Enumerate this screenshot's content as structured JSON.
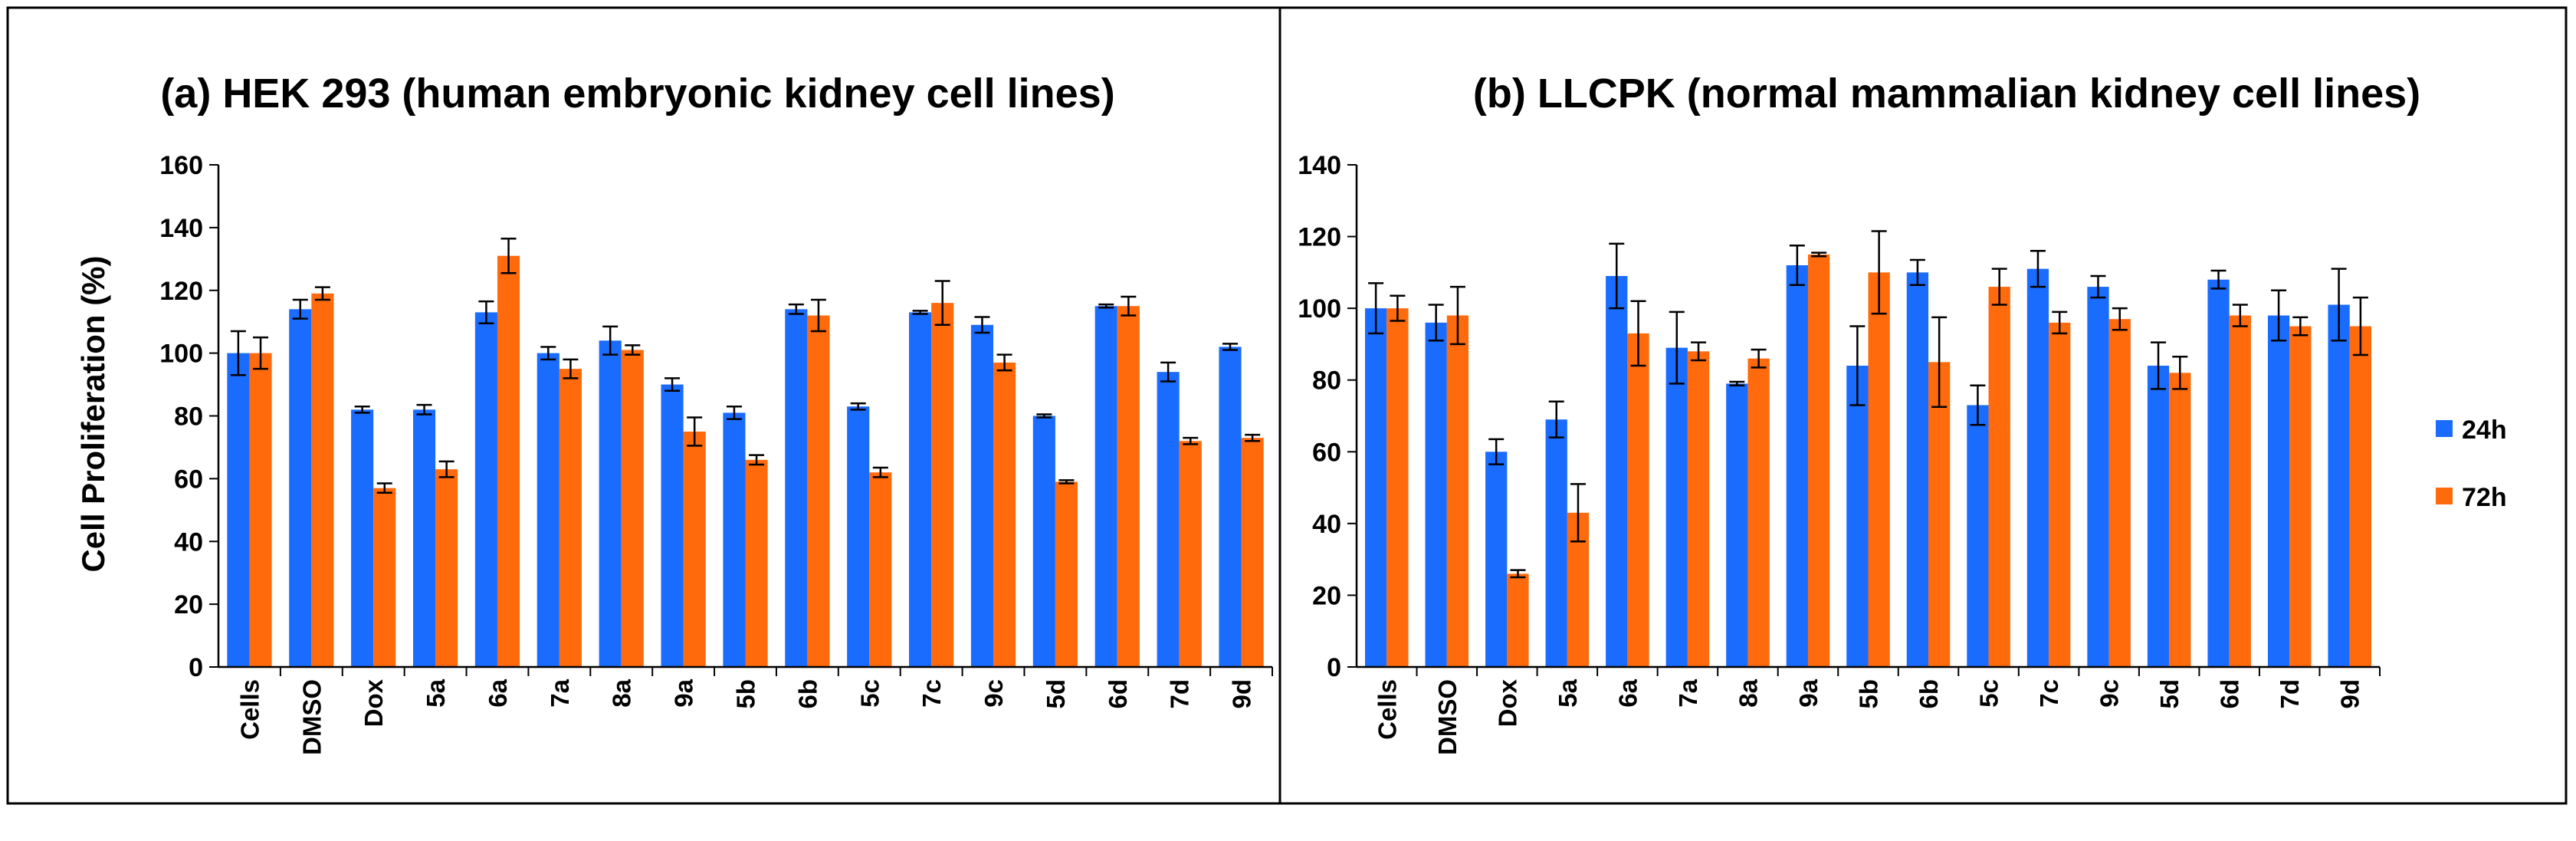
{
  "colors": {
    "s24": "#1a6cff",
    "s72": "#ff6a0d",
    "axis": "#000000",
    "frame": "#000000"
  },
  "legend": [
    {
      "label": "24h",
      "color": "#1a6cff"
    },
    {
      "label": "72h",
      "color": "#ff6a0d"
    }
  ],
  "chart_data": [
    {
      "type": "bar",
      "title": "(a) HEK 293 (human embryonic kidney cell lines)",
      "ylabel": "Cell Proliferation (%)",
      "xlabel": "",
      "ylim": [
        0,
        160
      ],
      "yticks": [
        "0",
        "20",
        "40",
        "60",
        "80",
        "100",
        "120",
        "140",
        "160"
      ],
      "categories": [
        "Cells",
        "DMSO",
        "Dox",
        "5a",
        "6a",
        "7a",
        "8a",
        "9a",
        "5b",
        "6b",
        "5c",
        "7c",
        "9c",
        "5d",
        "6d",
        "7d",
        "9d"
      ],
      "series": [
        {
          "name": "24h",
          "values": [
            100,
            114,
            82,
            82,
            113,
            100,
            104,
            90,
            81,
            114,
            83,
            113,
            109,
            80,
            115,
            94,
            102
          ],
          "errors": [
            7,
            3,
            1,
            1.5,
            3.5,
            2,
            4.5,
            2,
            2,
            1.5,
            1,
            0.5,
            2.5,
            0.5,
            0.5,
            3,
            1
          ]
        },
        {
          "name": "72h",
          "values": [
            100,
            119,
            57,
            63,
            131,
            95,
            101,
            75,
            66,
            112,
            62,
            116,
            97,
            59,
            115,
            72,
            73
          ],
          "errors": [
            5,
            2,
            1.5,
            2.5,
            5.5,
            3,
            1.5,
            4.5,
            1.5,
            5,
            1.5,
            7,
            2.5,
            0.5,
            3,
            1,
            1
          ]
        }
      ]
    },
    {
      "type": "bar",
      "title": "(b) LLCPK (normal mammalian kidney cell lines)",
      "ylabel": "",
      "xlabel": "",
      "ylim": [
        0,
        140
      ],
      "yticks": [
        "0",
        "20",
        "40",
        "60",
        "80",
        "100",
        "120",
        "140"
      ],
      "categories": [
        "Cells",
        "DMSO",
        "Dox",
        "5a",
        "6a",
        "7a",
        "8a",
        "9a",
        "5b",
        "6b",
        "5c",
        "7c",
        "9c",
        "5d",
        "6d",
        "7d",
        "9d"
      ],
      "series": [
        {
          "name": "24h",
          "values": [
            100,
            96,
            60,
            69,
            109,
            89,
            79,
            112,
            84,
            110,
            73,
            111,
            106,
            84,
            108,
            98,
            101
          ],
          "errors": [
            7,
            5,
            3.5,
            5,
            9,
            10,
            0.5,
            5.5,
            11,
            3.5,
            5.5,
            5,
            3,
            6.5,
            2.5,
            7,
            10
          ]
        },
        {
          "name": "72h",
          "values": [
            100,
            98,
            26,
            43,
            93,
            88,
            86,
            115,
            110,
            85,
            106,
            96,
            97,
            82,
            98,
            95,
            95
          ],
          "errors": [
            3.5,
            8,
            1,
            8,
            9,
            2.5,
            2.5,
            0.5,
            11.5,
            12.5,
            5,
            3,
            3,
            4.5,
            3,
            2.5,
            8
          ]
        }
      ]
    }
  ]
}
